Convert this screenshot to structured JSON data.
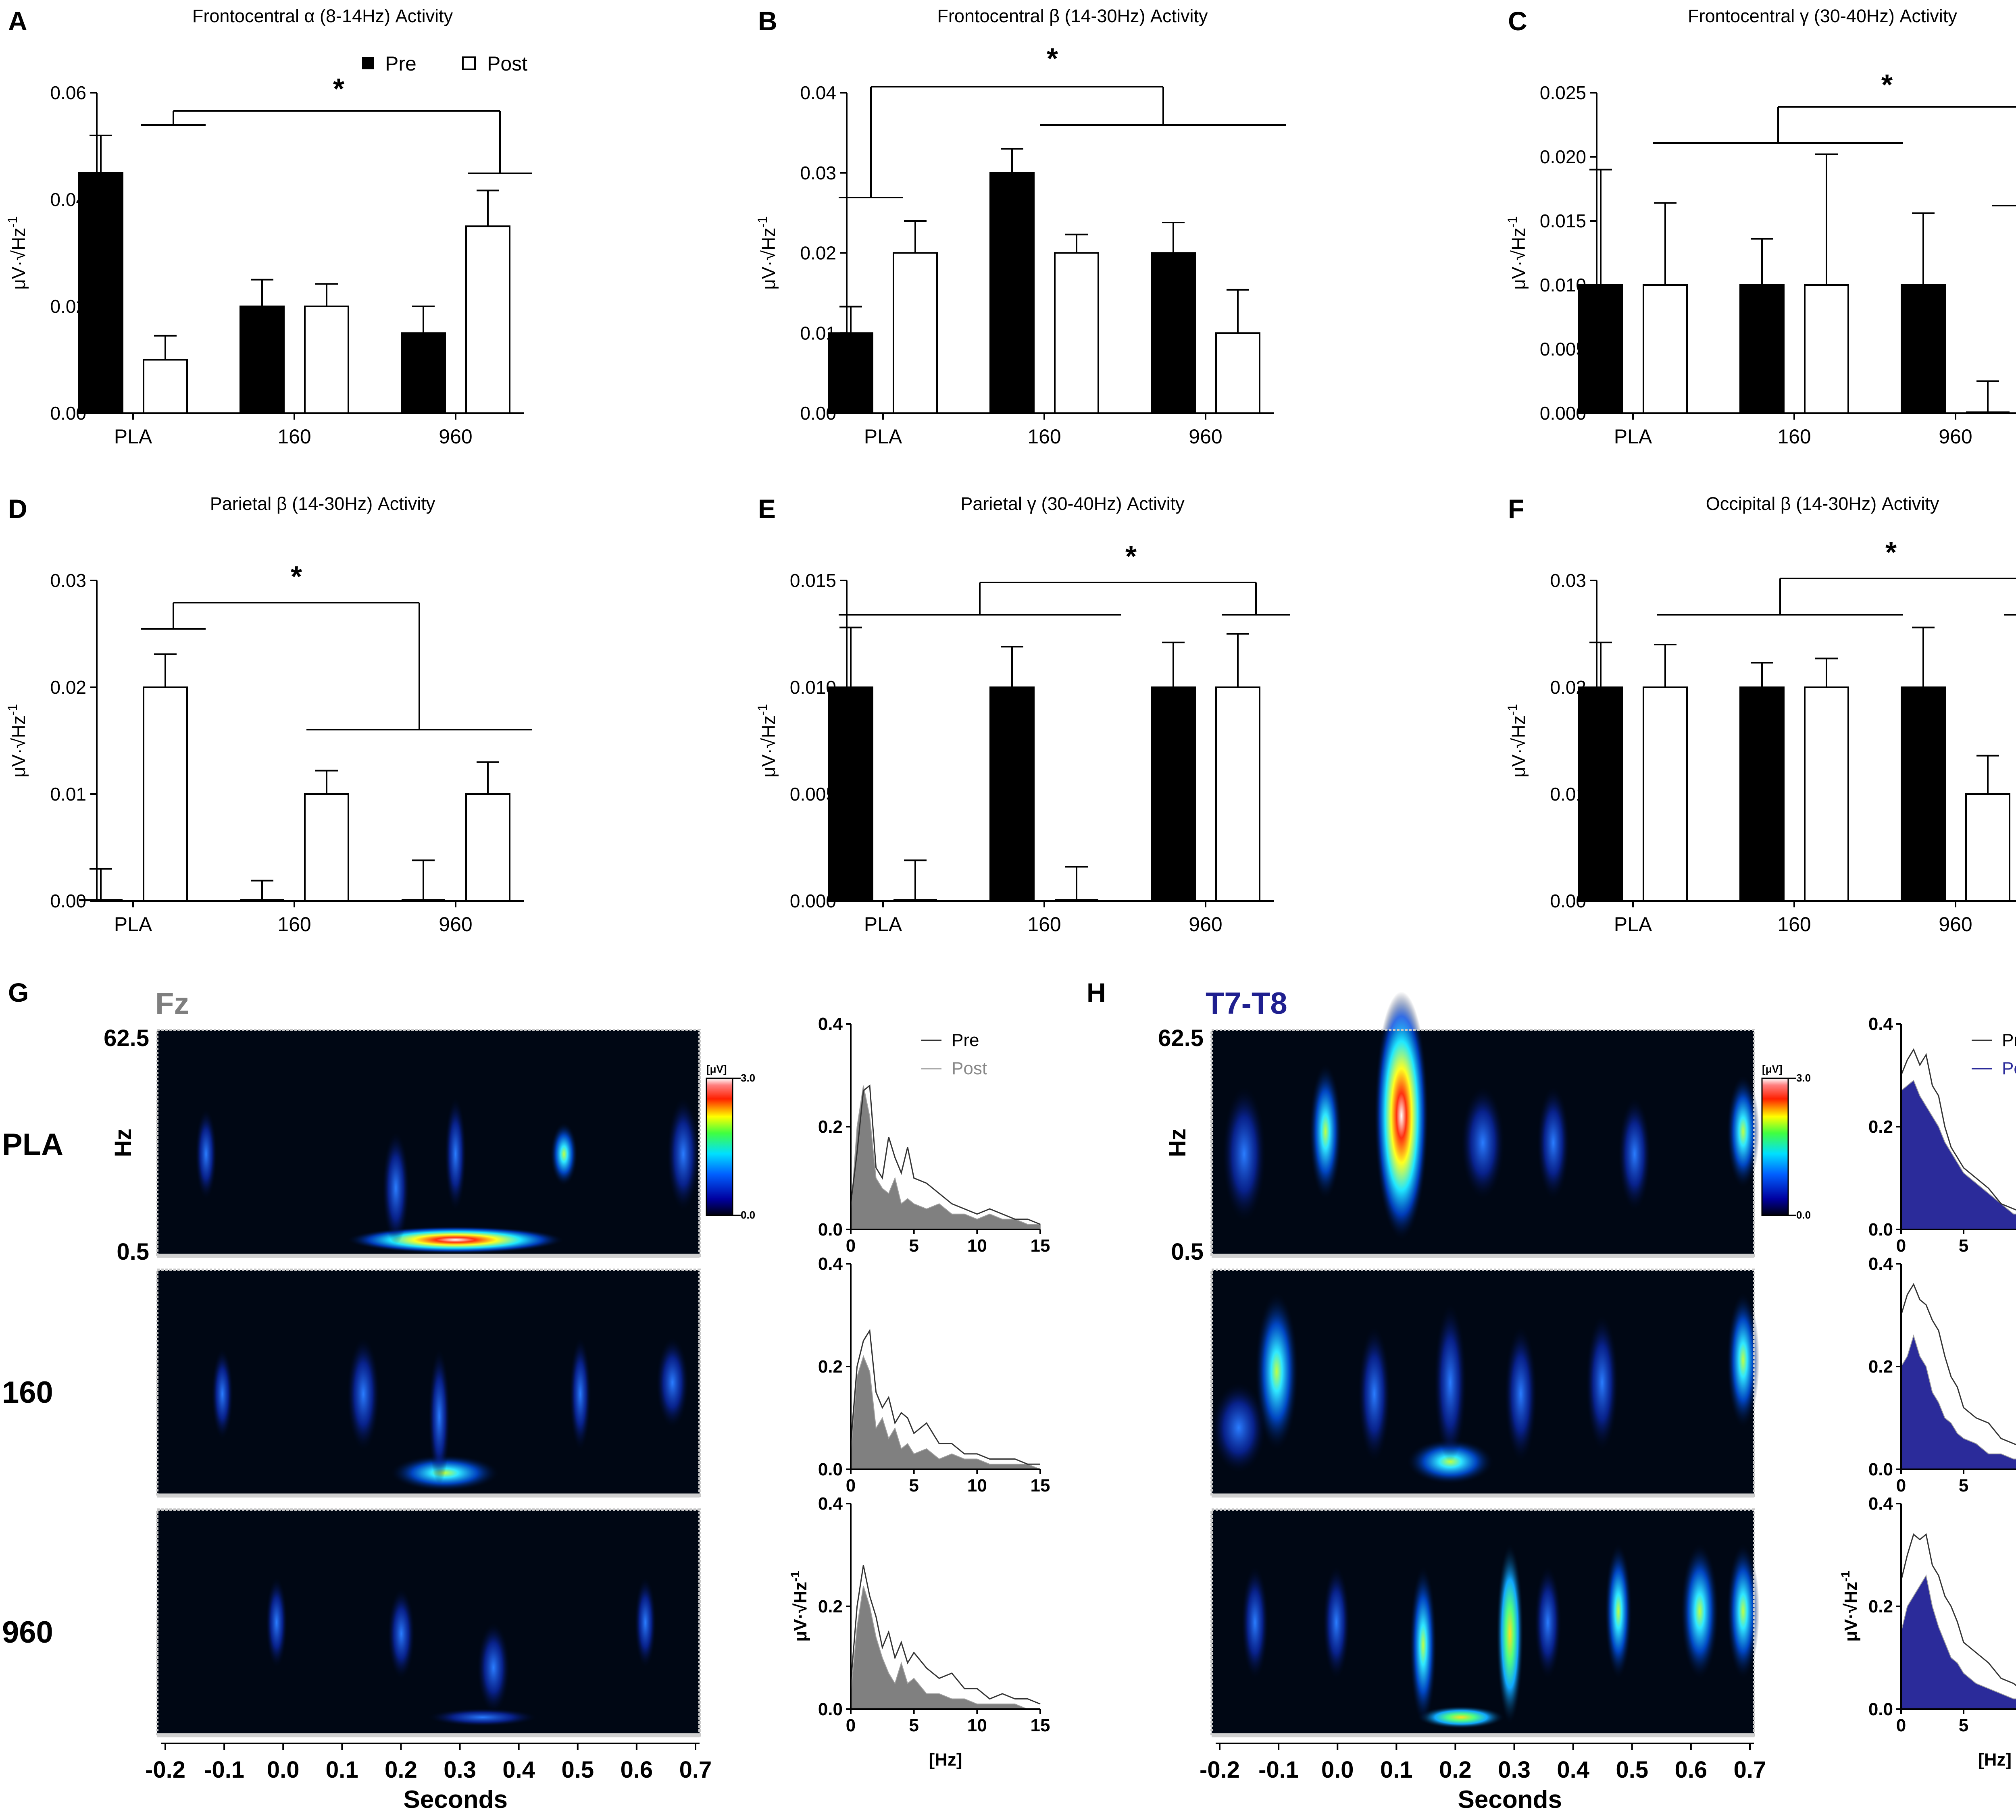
{
  "legend": {
    "pre": "Pre",
    "post": "Post"
  },
  "significance_marker": "*",
  "y_axis_label": "μV·√Hz",
  "y_axis_exponent": "-1",
  "chart_data": [
    {
      "panel": "A",
      "type": "bar",
      "title": "Frontocentral α (8-14Hz) Activity",
      "categories": [
        "PLA",
        "160",
        "960"
      ],
      "ylim": [
        0,
        0.06
      ],
      "yticks": [
        "0.00",
        "0.02",
        "0.04",
        "0.06"
      ],
      "series": [
        {
          "name": "Pre",
          "values": [
            0.045,
            0.02,
            0.015
          ],
          "errors": [
            0.007,
            0.005,
            0.005
          ]
        },
        {
          "name": "Post",
          "values": [
            0.01,
            0.02,
            0.035
          ],
          "errors": [
            0.0045,
            0.0042,
            0.0067
          ]
        }
      ]
    },
    {
      "panel": "B",
      "type": "bar",
      "title": "Frontocentral β (14-30Hz) Activity",
      "categories": [
        "PLA",
        "160",
        "960"
      ],
      "ylim": [
        0,
        0.04
      ],
      "yticks": [
        "0.00",
        "0.01",
        "0.02",
        "0.03",
        "0.04"
      ],
      "series": [
        {
          "name": "Pre",
          "values": [
            0.01,
            0.03,
            0.02
          ],
          "errors": [
            0.0033,
            0.003,
            0.0038
          ]
        },
        {
          "name": "Post",
          "values": [
            0.02,
            0.02,
            0.01
          ],
          "errors": [
            0.004,
            0.0023,
            0.0054
          ]
        }
      ]
    },
    {
      "panel": "C",
      "type": "bar",
      "title": "Frontocentral γ (30-40Hz) Activity",
      "categories": [
        "PLA",
        "160",
        "960"
      ],
      "ylim": [
        0,
        0.025
      ],
      "yticks": [
        "0.000",
        "0.005",
        "0.010",
        "0.015",
        "0.020",
        "0.025"
      ],
      "series": [
        {
          "name": "Pre",
          "values": [
            0.01,
            0.01,
            0.01
          ],
          "errors": [
            0.009,
            0.0036,
            0.0056
          ]
        },
        {
          "name": "Post",
          "values": [
            0.01,
            0.01,
            0.0
          ],
          "errors": [
            0.0064,
            0.0102,
            0.0025
          ]
        }
      ]
    },
    {
      "panel": "D",
      "type": "bar",
      "title": "Parietal β (14-30Hz) Activity",
      "categories": [
        "PLA",
        "160",
        "960"
      ],
      "ylim": [
        0,
        0.03
      ],
      "yticks": [
        "0.00",
        "0.01",
        "0.02",
        "0.03"
      ],
      "series": [
        {
          "name": "Pre",
          "values": [
            0.0,
            0.0,
            0.0
          ],
          "errors": [
            0.003,
            0.0019,
            0.0038
          ]
        },
        {
          "name": "Post",
          "values": [
            0.02,
            0.01,
            0.01
          ],
          "errors": [
            0.0031,
            0.0022,
            0.003
          ]
        }
      ]
    },
    {
      "panel": "E",
      "type": "bar",
      "title": "Parietal γ (30-40Hz) Activity",
      "categories": [
        "PLA",
        "160",
        "960"
      ],
      "ylim": [
        0,
        0.015
      ],
      "yticks": [
        "0.000",
        "0.005",
        "0.010",
        "0.015"
      ],
      "series": [
        {
          "name": "Pre",
          "values": [
            0.01,
            0.01,
            0.01
          ],
          "errors": [
            0.0028,
            0.0019,
            0.0021
          ]
        },
        {
          "name": "Post",
          "values": [
            0.0,
            0.0,
            0.01
          ],
          "errors": [
            0.0019,
            0.0016,
            0.0025
          ]
        }
      ]
    },
    {
      "panel": "F",
      "type": "bar",
      "title": "Occipital β (14-30Hz) Activity",
      "categories": [
        "PLA",
        "160",
        "960"
      ],
      "ylim": [
        0,
        0.03
      ],
      "yticks": [
        "0.00",
        "0.01",
        "0.02",
        "0.03"
      ],
      "series": [
        {
          "name": "Pre",
          "values": [
            0.02,
            0.02,
            0.02
          ],
          "errors": [
            0.0042,
            0.0023,
            0.0056
          ]
        },
        {
          "name": "Post",
          "values": [
            0.02,
            0.02,
            0.01
          ],
          "errors": [
            0.004,
            0.0027,
            0.0036
          ]
        }
      ]
    }
  ],
  "time_frequency": {
    "panels": [
      {
        "panel": "G",
        "channel": "Fz",
        "channel_color": "#7f7f7f",
        "post_fill": "#808080"
      },
      {
        "panel": "H",
        "channel": "T7-T8",
        "channel_color": "#1f1f8f",
        "post_fill": "#2b2b9a"
      }
    ],
    "rows": [
      "PLA",
      "160",
      "960"
    ],
    "freq_axis": {
      "label": "Hz",
      "top": "62.5",
      "bottom": "0.5"
    },
    "time_axis": {
      "label": "Seconds",
      "ticks": [
        "-0.2",
        "-0.1",
        "0.0",
        "0.1",
        "0.2",
        "0.3",
        "0.4",
        "0.5",
        "0.6",
        "0.7"
      ]
    },
    "colorbar": {
      "unit": "[μV]",
      "max": "3.0",
      "min": "0.0"
    },
    "spectrum": {
      "x_label": "[Hz]",
      "x_ticks": [
        "0",
        "5",
        "10",
        "15"
      ],
      "y_ticks": [
        "0.0",
        "0.2",
        "0.4"
      ],
      "ylim": [
        0,
        0.4
      ],
      "xlim": [
        0,
        15
      ]
    }
  }
}
